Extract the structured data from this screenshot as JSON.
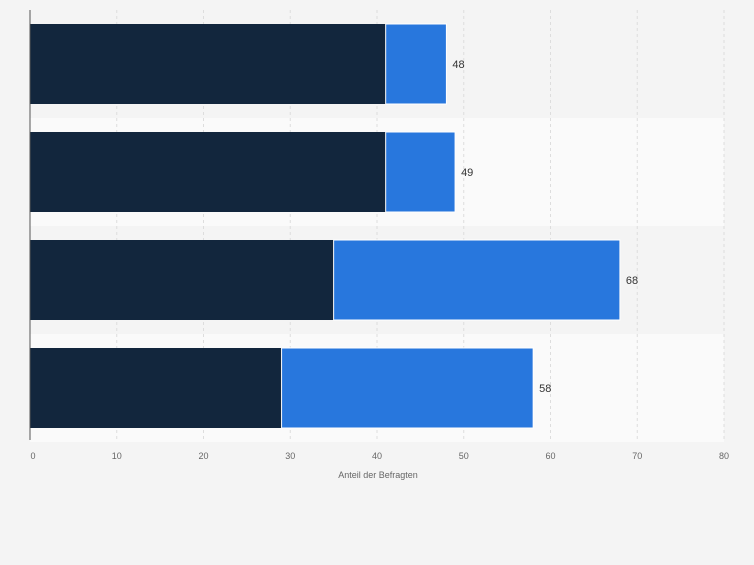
{
  "chart_data": {
    "type": "bar",
    "orientation": "horizontal",
    "stacked": true,
    "categories": [
      "",
      "",
      "",
      ""
    ],
    "series": [
      {
        "values": [
          41,
          41,
          35,
          29
        ],
        "color": "#12263d"
      },
      {
        "values": [
          7,
          8,
          33,
          29
        ],
        "color": "#2877dd"
      }
    ],
    "totals": [
      48,
      49,
      68,
      58
    ],
    "total_labels": [
      "48",
      "49",
      "68",
      "58"
    ],
    "xlabel": "Anteil der Befragten",
    "ylabel": "",
    "xlim": [
      0,
      80
    ],
    "xticks": [
      0,
      10,
      20,
      30,
      40,
      50,
      60,
      70,
      80
    ],
    "xtick_labels": [
      "0",
      "10",
      "20",
      "30",
      "40",
      "50",
      "60",
      "70",
      "80"
    ],
    "grid": true,
    "legend": "none"
  },
  "colors": {
    "background": "#f4f4f4",
    "band_alt": "#fafafa",
    "gridline": "#dddddd",
    "axis": "#555555",
    "tick_text": "#666666",
    "label_text": "#333333"
  }
}
